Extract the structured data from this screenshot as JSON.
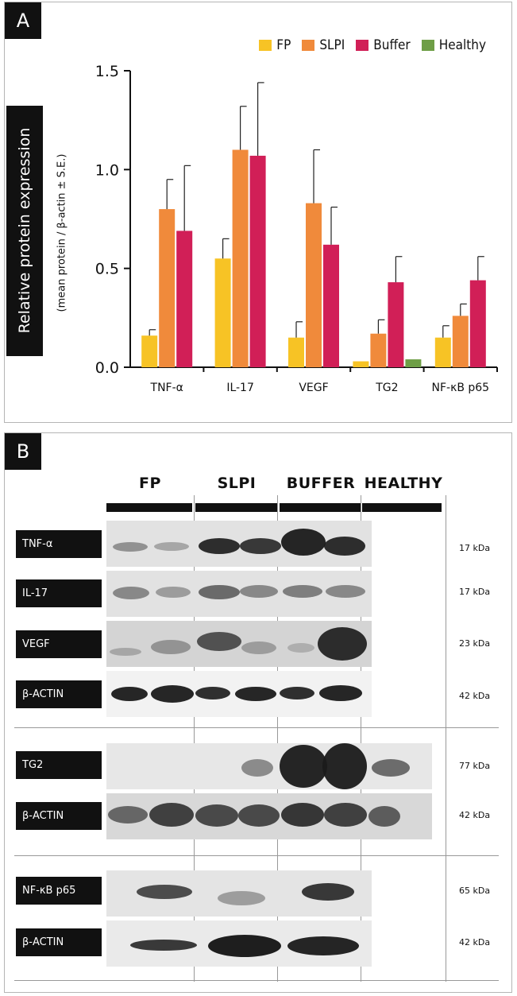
{
  "panelA": {
    "label": "A",
    "ylabel": "Relative protein expression",
    "ylabel_sub": "(mean protein / β-actin ± S.E.)",
    "yticks": [
      "0.0",
      "0.5",
      "1.0",
      "1.5"
    ]
  },
  "chart_data": {
    "type": "bar",
    "categories": [
      "TNF-α",
      "IL-17",
      "VEGF",
      "TG2",
      "NF-κB p65"
    ],
    "series": [
      {
        "name": "FP",
        "color": "#F7C325",
        "values": [
          0.16,
          0.55,
          0.15,
          0.03,
          0.15
        ],
        "errors": [
          0.03,
          0.1,
          0.08,
          0.0,
          0.06
        ]
      },
      {
        "name": "SLPI",
        "color": "#F08A3B",
        "values": [
          0.8,
          1.1,
          0.83,
          0.17,
          0.26
        ],
        "errors": [
          0.15,
          0.22,
          0.27,
          0.07,
          0.06
        ]
      },
      {
        "name": "Buffer",
        "color": "#D11F57",
        "values": [
          0.69,
          1.07,
          0.62,
          0.43,
          0.44
        ],
        "errors": [
          0.33,
          0.37,
          0.19,
          0.13,
          0.12
        ]
      },
      {
        "name": "Healthy",
        "color": "#6E9E46",
        "values": [
          null,
          null,
          null,
          0.04,
          null
        ],
        "errors": [
          null,
          null,
          null,
          0.0,
          null
        ]
      }
    ],
    "ylim": [
      0,
      1.5
    ],
    "legend": "top-right",
    "grid": false
  },
  "panelB": {
    "label": "B",
    "groups": [
      "FP",
      "SLPI",
      "BUFFER",
      "HEALTHY"
    ],
    "rows": [
      {
        "label": "TNF-α",
        "kda": "17 kDa"
      },
      {
        "label": "IL-17",
        "kda": "17 kDa"
      },
      {
        "label": "VEGF",
        "kda": "23 kDa"
      },
      {
        "label": "β-ACTIN",
        "kda": "42 kDa"
      },
      {
        "label": "TG2",
        "kda": "77 kDa"
      },
      {
        "label": "β-ACTIN",
        "kda": "42 kDa"
      },
      {
        "label": "NF-κB p65",
        "kda": "65 kDa"
      },
      {
        "label": "β-ACTIN",
        "kda": "42 kDa"
      }
    ]
  }
}
